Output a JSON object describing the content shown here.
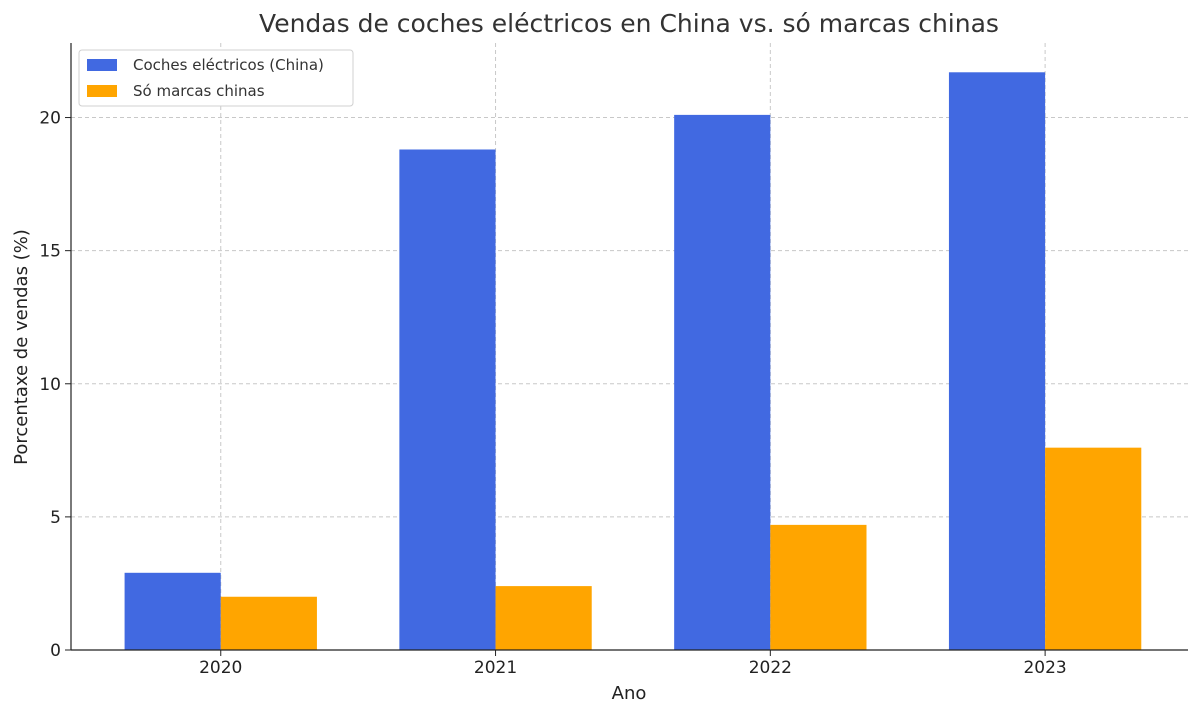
{
  "chart_data": {
    "type": "bar",
    "title": "Vendas de coches eléctricos en China vs. só marcas chinas",
    "xlabel": "Ano",
    "ylabel": "Porcentaxe de vendas (%)",
    "categories": [
      "2020",
      "2021",
      "2022",
      "2023"
    ],
    "series": [
      {
        "name": "Coches eléctricos (China)",
        "color": "#4169E1",
        "values": [
          2.9,
          18.8,
          20.1,
          21.7
        ]
      },
      {
        "name": "Só marcas chinas",
        "color": "#FFA500",
        "values": [
          2.0,
          2.4,
          4.7,
          7.6
        ]
      }
    ],
    "ylim": [
      0,
      22.8
    ],
    "yticks": [
      0,
      5,
      10,
      15,
      20
    ],
    "grid": true,
    "legend_position": "top-left"
  }
}
